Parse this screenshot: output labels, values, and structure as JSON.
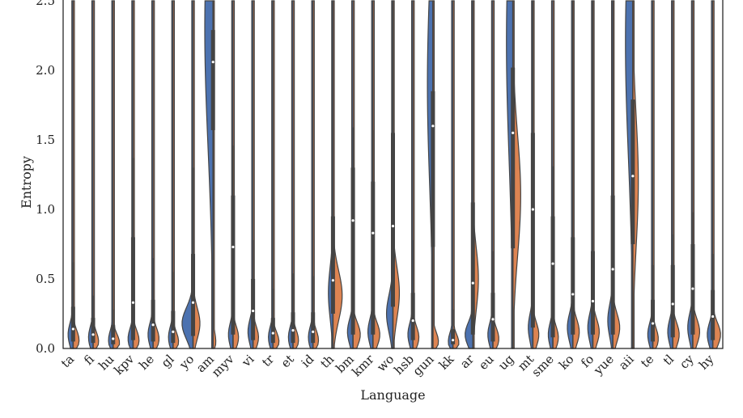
{
  "chart_data": {
    "type": "violin",
    "xlabel": "Language",
    "ylabel": "Entropy",
    "ylim": [
      0,
      2.5
    ],
    "yticks": [
      "0.0",
      "0.5",
      "1.0",
      "1.5",
      "2.0",
      "2.5"
    ],
    "grid": false,
    "split_colors": {
      "left": "#4c72b0",
      "right": "#dd8452"
    },
    "line_color": "#444444",
    "categories": [
      "ta",
      "fi",
      "hu",
      "kpv",
      "he",
      "gl",
      "yo",
      "am",
      "myv",
      "vi",
      "tr",
      "et",
      "id",
      "th",
      "bm",
      "kmr",
      "wo",
      "hsb",
      "gun",
      "kk",
      "ar",
      "eu",
      "ug",
      "mt",
      "sme",
      "ko",
      "fo",
      "yue",
      "aii",
      "te",
      "tl",
      "cy",
      "hy"
    ],
    "series": [
      {
        "median": 0.14,
        "q1": 0.05,
        "q3": 0.3,
        "wmax": 0.62,
        "max": 2.5,
        "lmode": 0.1,
        "lpeak": 0.11,
        "rmode": 0.06,
        "rpeak": 0.13
      },
      {
        "median": 0.1,
        "q1": 0.04,
        "q3": 0.22,
        "wmax": 0.38,
        "max": 2.5,
        "lmode": 0.08,
        "lpeak": 0.1,
        "rmode": 0.05,
        "rpeak": 0.12
      },
      {
        "median": 0.07,
        "q1": 0.03,
        "q3": 0.17,
        "wmax": 0.28,
        "max": 2.5,
        "lmode": 0.06,
        "lpeak": 0.1,
        "rmode": 0.04,
        "rpeak": 0.14
      },
      {
        "median": 0.33,
        "q1": 0.06,
        "q3": 0.8,
        "wmax": 1.37,
        "max": 2.5,
        "lmode": 0.07,
        "lpeak": 0.11,
        "rmode": 0.06,
        "rpeak": 0.13
      },
      {
        "median": 0.17,
        "q1": 0.05,
        "q3": 0.35,
        "wmax": 0.65,
        "max": 2.5,
        "lmode": 0.1,
        "lpeak": 0.11,
        "rmode": 0.07,
        "rpeak": 0.13
      },
      {
        "median": 0.12,
        "q1": 0.04,
        "q3": 0.27,
        "wmax": 0.55,
        "max": 2.5,
        "lmode": 0.08,
        "lpeak": 0.1,
        "rmode": 0.05,
        "rpeak": 0.12
      },
      {
        "median": 0.33,
        "q1": 0.09,
        "q3": 0.68,
        "wmax": 1.3,
        "max": 2.5,
        "lmode": 0.18,
        "lpeak": 0.24,
        "rmode": 0.18,
        "rpeak": 0.15
      },
      {
        "median": 2.06,
        "q1": 1.57,
        "q3": 2.29,
        "wmax": 2.5,
        "max": 2.5,
        "lmode": 2.3,
        "lpeak": 0.18,
        "rmode": 0.05,
        "rpeak": 0.06
      },
      {
        "median": 0.73,
        "q1": 0.1,
        "q3": 1.1,
        "wmax": 1.46,
        "max": 2.5,
        "lmode": 0.1,
        "lpeak": 0.1,
        "rmode": 0.08,
        "rpeak": 0.12
      },
      {
        "median": 0.27,
        "q1": 0.06,
        "q3": 0.5,
        "wmax": 0.78,
        "max": 2.5,
        "lmode": 0.12,
        "lpeak": 0.11,
        "rmode": 0.08,
        "rpeak": 0.12
      },
      {
        "median": 0.11,
        "q1": 0.04,
        "q3": 0.22,
        "wmax": 0.43,
        "max": 2.5,
        "lmode": 0.08,
        "lpeak": 0.1,
        "rmode": 0.05,
        "rpeak": 0.13
      },
      {
        "median": 0.13,
        "q1": 0.04,
        "q3": 0.26,
        "wmax": 0.54,
        "max": 2.5,
        "lmode": 0.08,
        "lpeak": 0.1,
        "rmode": 0.06,
        "rpeak": 0.12
      },
      {
        "median": 0.12,
        "q1": 0.04,
        "q3": 0.26,
        "wmax": 0.52,
        "max": 2.5,
        "lmode": 0.08,
        "lpeak": 0.1,
        "rmode": 0.06,
        "rpeak": 0.12
      },
      {
        "median": 0.49,
        "q1": 0.25,
        "q3": 0.95,
        "wmax": 2.5,
        "max": 2.5,
        "lmode": 0.4,
        "lpeak": 0.1,
        "rmode": 0.38,
        "rpeak": 0.2
      },
      {
        "median": 0.92,
        "q1": 0.1,
        "q3": 1.3,
        "wmax": 1.59,
        "max": 2.5,
        "lmode": 0.12,
        "lpeak": 0.12,
        "rmode": 0.1,
        "rpeak": 0.16
      },
      {
        "median": 0.83,
        "q1": 0.1,
        "q3": 1.2,
        "wmax": 1.57,
        "max": 2.5,
        "lmode": 0.12,
        "lpeak": 0.11,
        "rmode": 0.1,
        "rpeak": 0.15
      },
      {
        "median": 0.88,
        "q1": 0.3,
        "q3": 1.55,
        "wmax": 2.5,
        "max": 2.5,
        "lmode": 0.25,
        "lpeak": 0.14,
        "rmode": 0.4,
        "rpeak": 0.14
      },
      {
        "median": 0.2,
        "q1": 0.06,
        "q3": 0.4,
        "wmax": 0.78,
        "max": 2.5,
        "lmode": 0.1,
        "lpeak": 0.11,
        "rmode": 0.08,
        "rpeak": 0.13
      },
      {
        "median": 1.6,
        "q1": 0.73,
        "q3": 1.85,
        "wmax": 2.5,
        "max": 2.5,
        "lmode": 1.9,
        "lpeak": 0.12,
        "rmode": 0.05,
        "rpeak": 0.12
      },
      {
        "median": 0.06,
        "q1": 0.03,
        "q3": 0.14,
        "wmax": 0.28,
        "max": 2.5,
        "lmode": 0.05,
        "lpeak": 0.1,
        "rmode": 0.04,
        "rpeak": 0.13
      },
      {
        "median": 0.47,
        "q1": 0.1,
        "q3": 1.05,
        "wmax": 2.5,
        "max": 2.5,
        "lmode": 0.1,
        "lpeak": 0.17,
        "rmode": 0.5,
        "rpeak": 0.12
      },
      {
        "median": 0.21,
        "q1": 0.05,
        "q3": 0.4,
        "wmax": 0.7,
        "max": 2.5,
        "lmode": 0.1,
        "lpeak": 0.11,
        "rmode": 0.07,
        "rpeak": 0.13
      },
      {
        "median": 1.55,
        "q1": 0.72,
        "q3": 2.02,
        "wmax": 2.5,
        "max": 2.5,
        "lmode": 2.2,
        "lpeak": 0.14,
        "rmode": 1.1,
        "rpeak": 0.17
      },
      {
        "median": 1.0,
        "q1": 0.15,
        "q3": 1.55,
        "wmax": 2.5,
        "max": 2.5,
        "lmode": 0.15,
        "lpeak": 0.1,
        "rmode": 0.1,
        "rpeak": 0.13
      },
      {
        "median": 0.61,
        "q1": 0.08,
        "q3": 0.95,
        "wmax": 1.31,
        "max": 2.5,
        "lmode": 0.1,
        "lpeak": 0.1,
        "rmode": 0.08,
        "rpeak": 0.12
      },
      {
        "median": 0.39,
        "q1": 0.1,
        "q3": 0.8,
        "wmax": 2.5,
        "max": 2.5,
        "lmode": 0.15,
        "lpeak": 0.12,
        "rmode": 0.12,
        "rpeak": 0.14
      },
      {
        "median": 0.34,
        "q1": 0.1,
        "q3": 0.7,
        "wmax": 2.5,
        "max": 2.5,
        "lmode": 0.15,
        "lpeak": 0.11,
        "rmode": 0.12,
        "rpeak": 0.14
      },
      {
        "median": 0.57,
        "q1": 0.1,
        "q3": 1.1,
        "wmax": 2.5,
        "max": 2.5,
        "lmode": 0.2,
        "lpeak": 0.11,
        "rmode": 0.15,
        "rpeak": 0.15
      },
      {
        "median": 1.24,
        "q1": 0.75,
        "q3": 1.79,
        "wmax": 2.5,
        "max": 2.5,
        "lmode": 2.2,
        "lpeak": 0.16,
        "rmode": 1.2,
        "rpeak": 0.12
      },
      {
        "median": 0.18,
        "q1": 0.05,
        "q3": 0.35,
        "wmax": 0.6,
        "max": 2.5,
        "lmode": 0.1,
        "lpeak": 0.11,
        "rmode": 0.07,
        "rpeak": 0.12
      },
      {
        "median": 0.32,
        "q1": 0.08,
        "q3": 0.6,
        "wmax": 0.82,
        "max": 2.5,
        "lmode": 0.12,
        "lpeak": 0.11,
        "rmode": 0.1,
        "rpeak": 0.14
      },
      {
        "median": 0.43,
        "q1": 0.1,
        "q3": 0.75,
        "wmax": 0.98,
        "max": 2.5,
        "lmode": 0.15,
        "lpeak": 0.11,
        "rmode": 0.12,
        "rpeak": 0.15
      },
      {
        "median": 0.23,
        "q1": 0.06,
        "q3": 0.42,
        "wmax": 0.68,
        "max": 2.5,
        "lmode": 0.1,
        "lpeak": 0.12,
        "rmode": 0.1,
        "rpeak": 0.17
      }
    ]
  }
}
